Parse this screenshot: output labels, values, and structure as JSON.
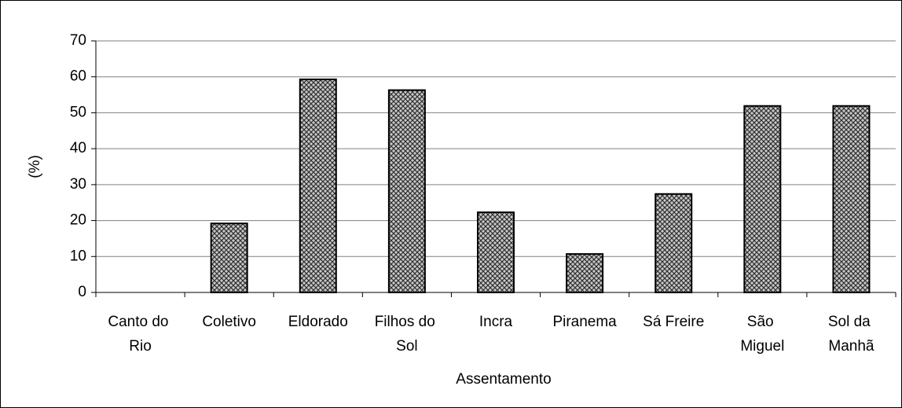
{
  "chart_data": {
    "type": "bar",
    "categories": [
      "Canto do Rio",
      "Coletivo",
      "Eldorado",
      "Filhos do Sol",
      "Incra",
      "Piranema",
      "Sá Freire",
      "São Miguel",
      "Sol da Manhã"
    ],
    "values": [
      0,
      19.2,
      59.3,
      56.3,
      22.3,
      10.7,
      27.4,
      51.9,
      51.9
    ],
    "color": "#808080",
    "ylim": [
      0,
      70
    ],
    "yticks": [
      0,
      10,
      20,
      30,
      40,
      50,
      60,
      70
    ],
    "grid": true,
    "xlabel": "Assentamento",
    "ylabel": "(%)"
  }
}
